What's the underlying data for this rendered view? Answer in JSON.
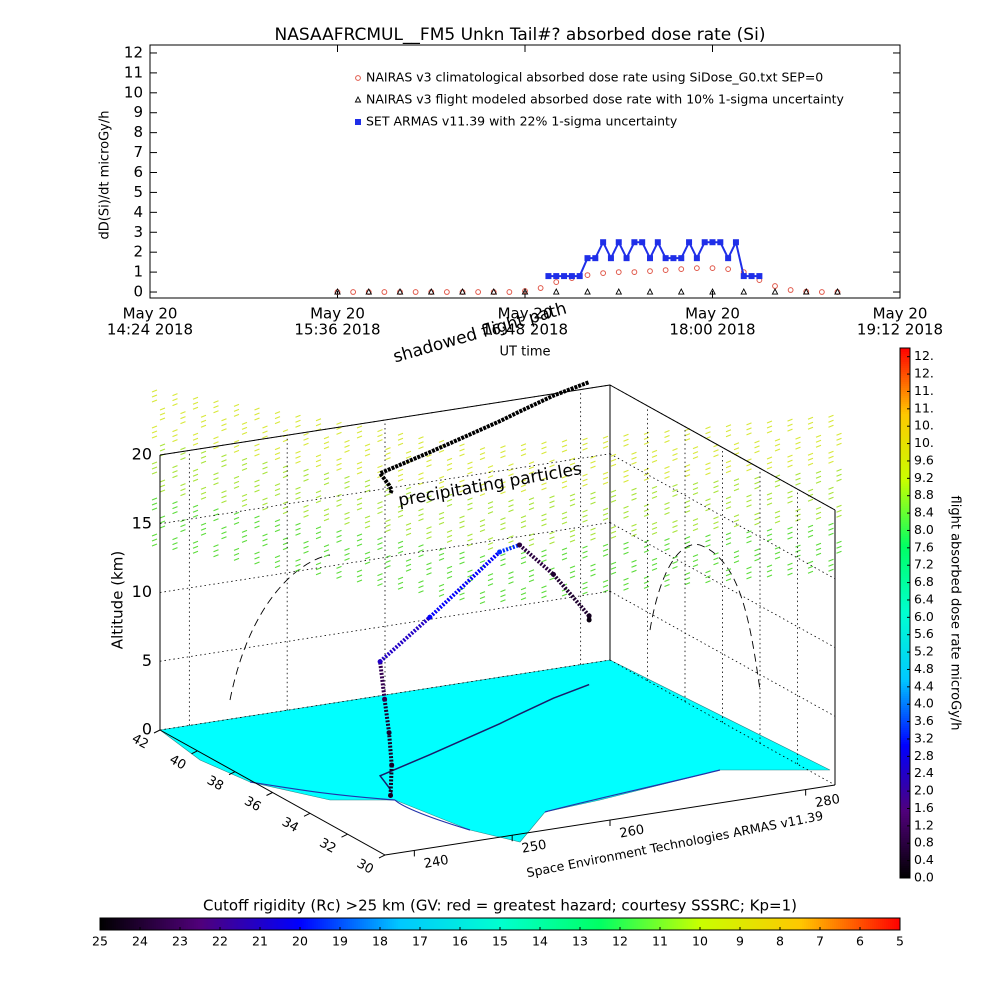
{
  "chart_data": [
    {
      "type": "line",
      "title": "NASAAFRCMUL__FM5 Unkn Tail#? absorbed dose rate (Si)",
      "ylabel": "dD(Si)/dt microGy/h",
      "xlabel": "UT time",
      "xlim": [
        14.4,
        19.2
      ],
      "xticks": [
        {
          "value": 14.4,
          "label": [
            "May 20",
            "14:24 2018"
          ]
        },
        {
          "value": 15.6,
          "label": [
            "May 20",
            "15:36 2018"
          ]
        },
        {
          "value": 16.8,
          "label": [
            "May 20",
            "16:48 2018"
          ]
        },
        {
          "value": 18,
          "label": [
            "May 20",
            "18:00 2018"
          ]
        },
        {
          "value": 19.2,
          "label": [
            "May 20",
            "19:12 2018"
          ]
        }
      ],
      "ylim": [
        -0.3,
        12.4
      ],
      "yticks": [
        0,
        1,
        2,
        3,
        4,
        5,
        6,
        7,
        8,
        9,
        10,
        11,
        12
      ],
      "series": [
        {
          "name": "NAIRAS v3 climatological absorbed dose rate using SiDose_G0.txt SEP=0",
          "color": "#e0584a",
          "marker": "circle",
          "x": [
            15.6,
            15.7,
            15.8,
            15.9,
            16,
            16.1,
            16.2,
            16.3,
            16.4,
            16.5,
            16.6,
            16.7,
            16.8,
            16.9,
            17,
            17.1,
            17.2,
            17.3,
            17.4,
            17.5,
            17.6,
            17.7,
            17.8,
            17.9,
            18,
            18.1,
            18.2,
            18.3,
            18.4,
            18.5,
            18.6,
            18.7,
            18.8
          ],
          "values": [
            0,
            0,
            0,
            0,
            0,
            0,
            0,
            0,
            0,
            0,
            0,
            0,
            0.05,
            0.2,
            0.5,
            0.7,
            0.85,
            0.95,
            1,
            1,
            1.05,
            1.1,
            1.15,
            1.2,
            1.2,
            1.15,
            1,
            0.6,
            0.3,
            0.1,
            0.02,
            0,
            0
          ]
        },
        {
          "name": "NAIRAS v3 flight modeled absorbed dose rate with 10% 1-sigma uncertainty",
          "color": "#000000",
          "marker": "triangle",
          "x": [
            15.6,
            15.8,
            16,
            16.2,
            16.4,
            16.6,
            16.8,
            17,
            17.2,
            17.4,
            17.6,
            17.8,
            18,
            18.2,
            18.4,
            18.6,
            18.8
          ],
          "values": [
            0,
            0,
            0,
            0,
            0,
            0,
            0,
            0,
            0,
            0,
            0,
            0,
            0,
            0,
            0,
            0,
            0
          ]
        },
        {
          "name": "SET ARMAS v11.39 with 22% 1-sigma uncertainty",
          "color": "#1f2ee8",
          "marker": "square",
          "x": [
            16.95,
            17,
            17.05,
            17.1,
            17.15,
            17.2,
            17.25,
            17.3,
            17.35,
            17.4,
            17.45,
            17.5,
            17.55,
            17.6,
            17.65,
            17.7,
            17.75,
            17.8,
            17.85,
            17.9,
            17.95,
            18,
            18.05,
            18.1,
            18.15,
            18.2,
            18.25,
            18.3
          ],
          "values": [
            0.8,
            0.8,
            0.8,
            0.8,
            0.8,
            1.7,
            1.7,
            2.5,
            1.7,
            2.5,
            1.7,
            2.5,
            2.5,
            1.7,
            2.5,
            1.7,
            1.7,
            1.7,
            2.5,
            1.7,
            2.5,
            2.5,
            2.5,
            1.7,
            2.5,
            0.8,
            0.8,
            0.8
          ]
        }
      ]
    },
    {
      "type": "flight3d",
      "zlabel": "Altitude (km)",
      "annotations": [
        "shadowed flight path",
        "precipitating particles",
        "Space Environment Technologies ARMAS v11.39"
      ],
      "xlim": [
        237,
        283
      ],
      "xticks": [
        240,
        250,
        260,
        280
      ],
      "ylim": [
        42,
        30
      ],
      "yticks": [
        42,
        40,
        38,
        36,
        34,
        32,
        30
      ],
      "zlim": [
        0,
        20
      ],
      "zticks": [
        0,
        5,
        10,
        15,
        20
      ],
      "track": {
        "lat": [
          34.4,
          34.6,
          35,
          35.5,
          36,
          37,
          38.5,
          39,
          39.8,
          40.4,
          40.4
        ],
        "lon": [
          246,
          246.5,
          247,
          247.5,
          248,
          255,
          265,
          268,
          273,
          277.8,
          277.8
        ],
        "alt": [
          0,
          2,
          4,
          6,
          8.3,
          10,
          12.5,
          12.3,
          9,
          5,
          4.7
        ],
        "dose": [
          0.4,
          0.5,
          0.6,
          1,
          2.4,
          3,
          3.4,
          0.8,
          0.6,
          0.4,
          0.2
        ]
      }
    },
    {
      "type": "colorbar",
      "label": "flight absorbed dose rate microGy/h",
      "ylim": [
        0,
        12.2
      ],
      "colormap": [
        "#000000",
        "#50007a",
        "#0000ff",
        "#00c8ff",
        "#00ffd0",
        "#00ff64",
        "#c8ff00",
        "#ffc800",
        "#ff0000"
      ],
      "yticks": [
        {
          "value": 0,
          "label": "0.0"
        },
        0.4,
        0.8,
        {
          "value": 1.2,
          "label": "1.2"
        },
        1.6,
        {
          "value": 2,
          "label": "2.0"
        },
        2.4,
        2.8,
        3.2,
        3.6,
        {
          "value": 4,
          "label": "4.0"
        },
        4.4,
        4.8,
        5.2,
        5.6,
        {
          "value": 6,
          "label": "6.0"
        },
        6.4,
        6.8,
        7.2,
        7.6,
        {
          "value": 8,
          "label": "8.0"
        },
        8.4,
        8.8,
        9.2,
        9.6,
        {
          "value": 10,
          "label": "10."
        },
        {
          "value": 10.4,
          "label": "10."
        },
        {
          "value": 10.8,
          "label": "11."
        },
        {
          "value": 11.2,
          "label": "11."
        },
        {
          "value": 11.6,
          "label": "12."
        },
        {
          "value": 12,
          "label": "12."
        }
      ]
    },
    {
      "type": "colorbar",
      "label": "Cutoff rigidity (Rc) >25 km (GV: red = greatest hazard; courtesy SSSRC; Kp=1)",
      "xlim": [
        25,
        5
      ],
      "colormap": [
        "#000000",
        "#50007a",
        "#0000ff",
        "#00c8ff",
        "#00ffd0",
        "#00ff64",
        "#c8ff00",
        "#ffc800",
        "#ff0000"
      ],
      "xticks": [
        25,
        24,
        23,
        22,
        21,
        20,
        19,
        18,
        17,
        16,
        15,
        14,
        13,
        12,
        11,
        10,
        9,
        8,
        7,
        6,
        5
      ]
    }
  ]
}
